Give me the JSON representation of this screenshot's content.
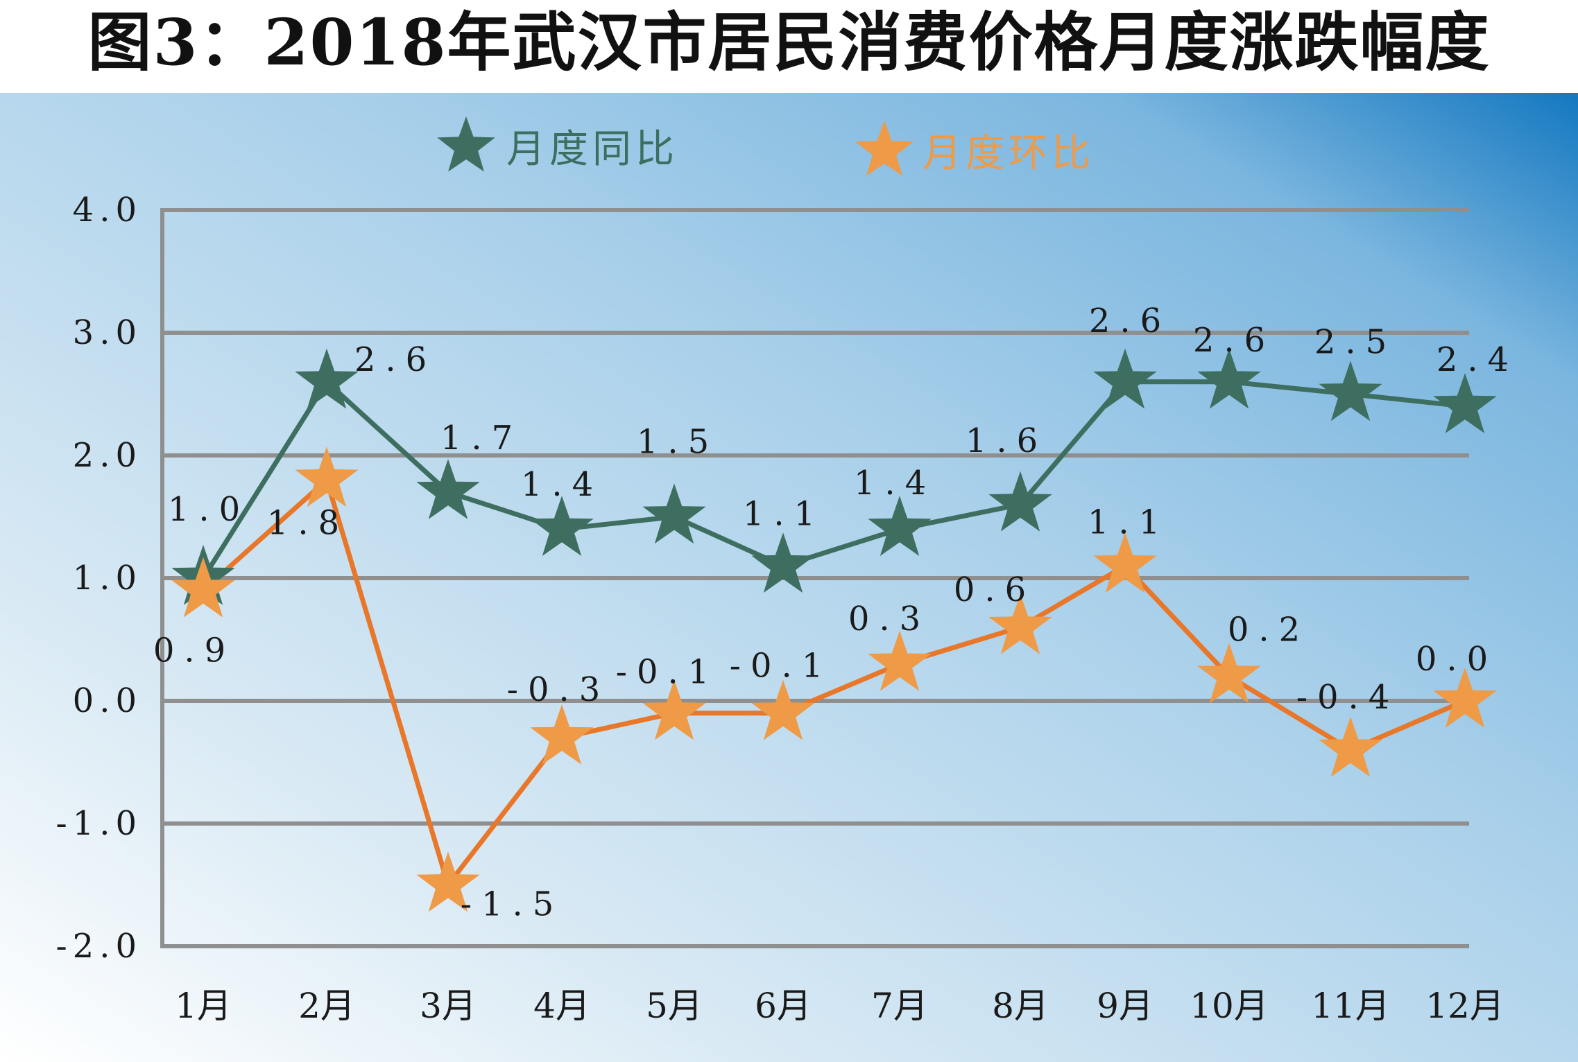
{
  "chart_data": {
    "type": "line",
    "title": "图3：2018年武汉市居民消费价格月度涨跌幅度",
    "categories": [
      "1月",
      "2月",
      "3月",
      "4月",
      "5月",
      "6月",
      "7月",
      "8月",
      "9月",
      "10月",
      "11月",
      "12月"
    ],
    "y_ticks": [
      "4.0",
      "3.0",
      "2.0",
      "1.0",
      "0.0",
      "-1.0",
      "-2.0"
    ],
    "ylim": [
      -2.0,
      4.0
    ],
    "grid": true,
    "legend_placement": "top-center",
    "series": [
      {
        "name": "月度同比",
        "color": "#3d6e60",
        "marker": "star",
        "values": [
          1.0,
          2.6,
          1.7,
          1.4,
          1.5,
          1.1,
          1.4,
          1.6,
          2.6,
          2.6,
          2.5,
          2.4
        ],
        "labels": [
          "1.0",
          "2.6",
          "1.7",
          "1.4",
          "1.5",
          "1.1",
          "1.4",
          "1.6",
          "2.6",
          "2.6",
          "2.5",
          "2.4"
        ]
      },
      {
        "name": "月度环比",
        "color": "#ee9a47",
        "line_color": "#e8772a",
        "marker": "star",
        "values": [
          0.9,
          1.8,
          -1.5,
          -0.3,
          -0.1,
          -0.1,
          0.3,
          0.6,
          1.1,
          0.2,
          -0.4,
          0.0
        ],
        "labels": [
          "0.9",
          "1.8",
          "-1.5",
          "-0.3",
          "-0.1",
          "-0.1",
          "0.3",
          "0.6",
          "1.1",
          "0.2",
          "-0.4",
          "0.0"
        ]
      }
    ]
  }
}
